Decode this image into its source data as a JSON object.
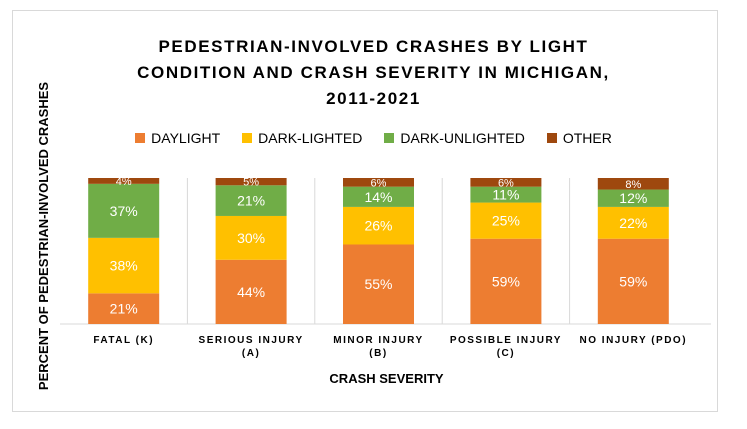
{
  "chart_data": {
    "type": "bar",
    "stacked": true,
    "title_lines": [
      "PEDESTRIAN-INVOLVED CRASHES BY LIGHT",
      "CONDITION AND CRASH SEVERITY IN MICHIGAN,",
      "2011-2021"
    ],
    "xlabel": "CRASH SEVERITY",
    "ylabel": "PERCENT OF PEDESTRIAN-INVOLVED CRASHES",
    "legend_position": "top",
    "categories": [
      [
        "FATAL (K)"
      ],
      [
        "SERIOUS INJURY",
        "(A)"
      ],
      [
        "MINOR INJURY",
        "(B)"
      ],
      [
        "POSSIBLE INJURY",
        "(C)"
      ],
      [
        "NO INJURY (PDO)"
      ]
    ],
    "series": [
      {
        "name": "DAYLIGHT",
        "color": "#ED7D31",
        "values": [
          21,
          44,
          55,
          59,
          59
        ]
      },
      {
        "name": "DARK-LIGHTED",
        "color": "#FFC000",
        "values": [
          38,
          30,
          26,
          25,
          22
        ]
      },
      {
        "name": "DARK-UNLIGHTED",
        "color": "#70AD47",
        "values": [
          37,
          21,
          14,
          11,
          12
        ]
      },
      {
        "name": "OTHER",
        "color": "#9E480E",
        "values": [
          4,
          5,
          6,
          6,
          8
        ]
      }
    ],
    "value_suffix": "%",
    "grid": "vertical separators"
  }
}
